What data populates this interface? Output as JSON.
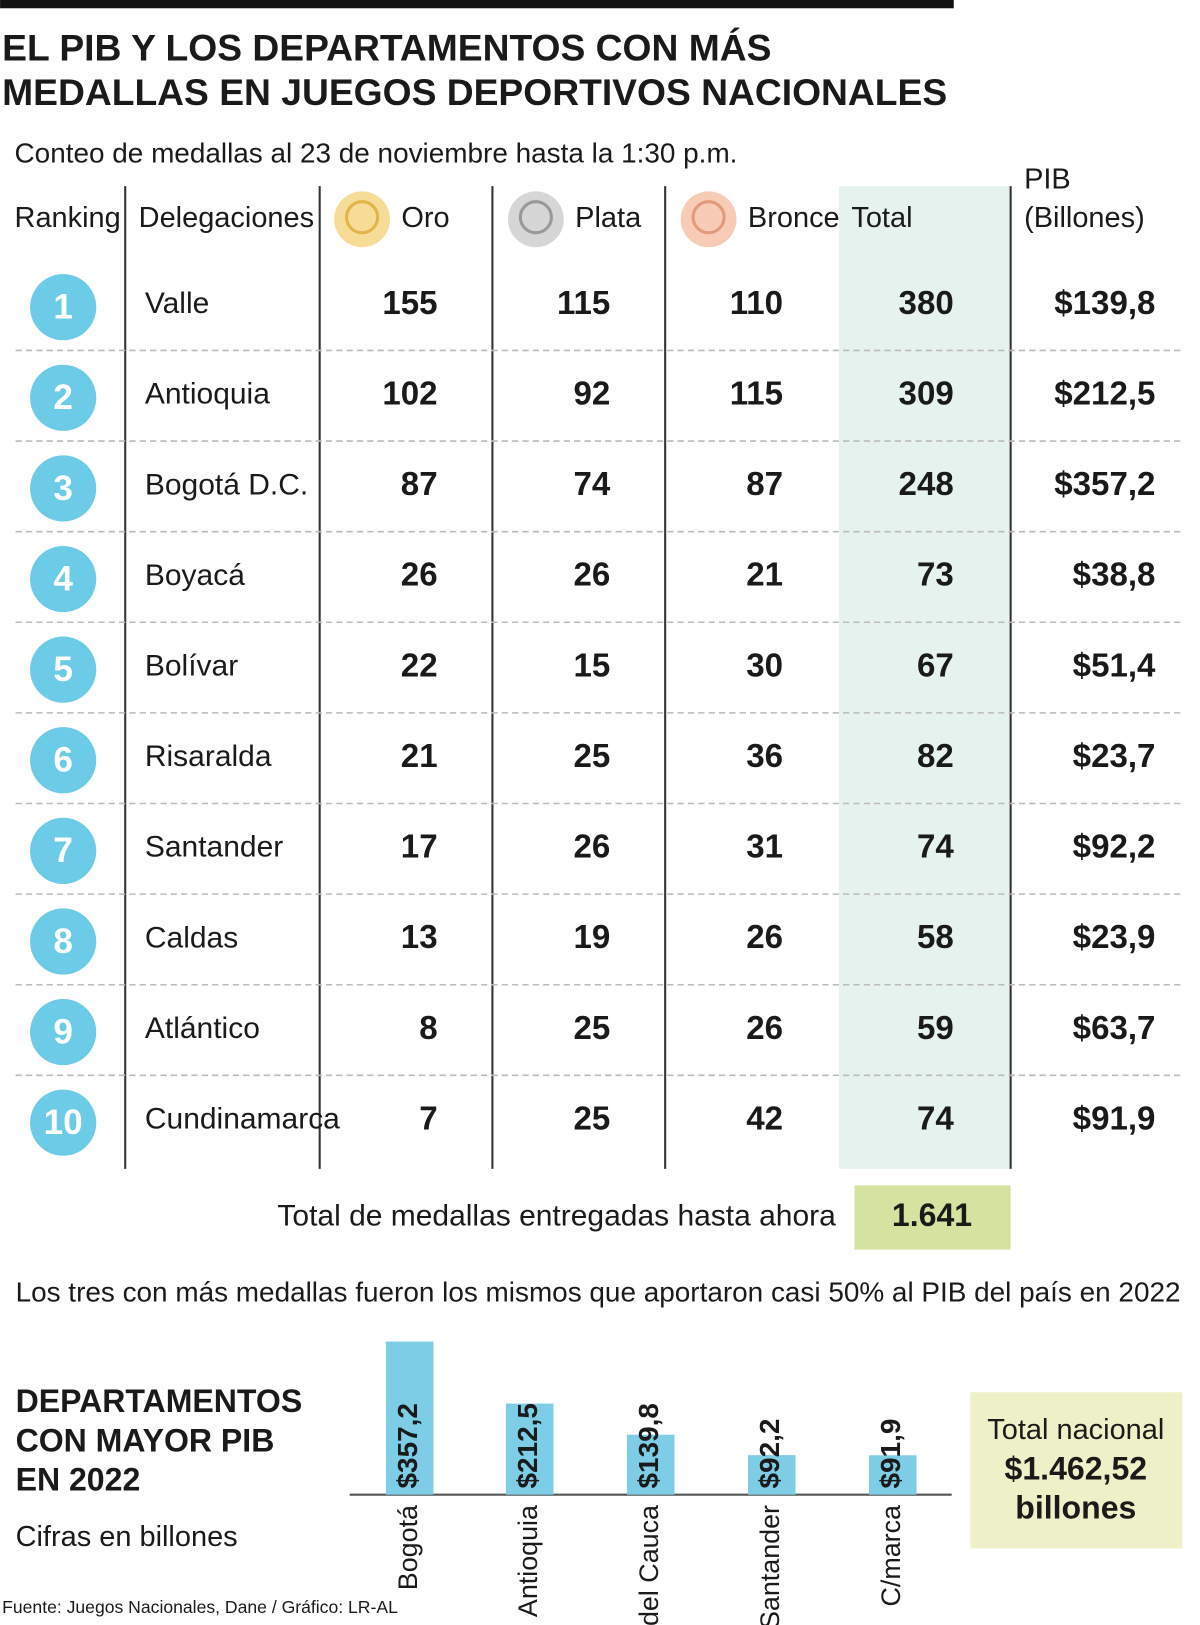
{
  "header": {
    "title": [
      "EL PIB Y LOS DEPARTAMENTOS CON MÁS",
      "MEDALLAS EN JUEGOS DEPORTIVOS NACIONALES"
    ],
    "subtitle": "Conteo de medallas al 23 de noviembre hasta la 1:30 p.m."
  },
  "table": {
    "columns": [
      "Ranking",
      "Delegaciones",
      "Oro",
      "Plata",
      "Bronce",
      "Total",
      "PIB",
      "(Billones)"
    ],
    "rows": [
      [
        1,
        "Valle",
        155,
        115,
        110,
        380,
        "$139,8"
      ],
      [
        2,
        "Antioquia",
        102,
        92,
        115,
        309,
        "$212,5"
      ],
      [
        3,
        "Bogotá D.C.",
        87,
        74,
        87,
        248,
        "$357,2"
      ],
      [
        4,
        "Boyacá",
        26,
        26,
        21,
        73,
        "$38,8"
      ],
      [
        5,
        "Bolívar",
        22,
        15,
        30,
        67,
        "$51,4"
      ],
      [
        6,
        "Risaralda",
        21,
        25,
        36,
        82,
        "$23,7"
      ],
      [
        7,
        "Santander",
        17,
        26,
        31,
        74,
        "$92,2"
      ],
      [
        8,
        "Caldas",
        13,
        19,
        26,
        58,
        "$23,9"
      ],
      [
        9,
        "Atlántico",
        8,
        25,
        26,
        59,
        "$63,7"
      ],
      [
        10,
        "Cundinamarca",
        7,
        25,
        42,
        74,
        "$91,9"
      ]
    ],
    "total_label": "Total de medallas entregadas hasta ahora",
    "total_value": "1.641"
  },
  "note": "Los tres con más medallas fueron los mismos que aportaron casi 50% al PIB del país en 2022",
  "chart_data": {
    "type": "bar",
    "title": [
      "DEPARTAMENTOS",
      "CON MAYOR PIB",
      "EN 2022"
    ],
    "subtitle": "Cifras en billones",
    "categories": [
      "Bogotá",
      "Antioquia",
      "Valle del Cauca",
      "Santander",
      "C/marca"
    ],
    "values": [
      357.2,
      212.5,
      139.8,
      92.2,
      91.9
    ],
    "value_labels": [
      "$357,2",
      "$212,5",
      "$139,8",
      "$92,2",
      "$91,9"
    ],
    "color": "#7dcde6",
    "annotation": [
      "Total nacional",
      "$1.462,52",
      "billones"
    ]
  },
  "source": "Fuente: Juegos Nacionales, Dane / Gráfico: LR-AL"
}
